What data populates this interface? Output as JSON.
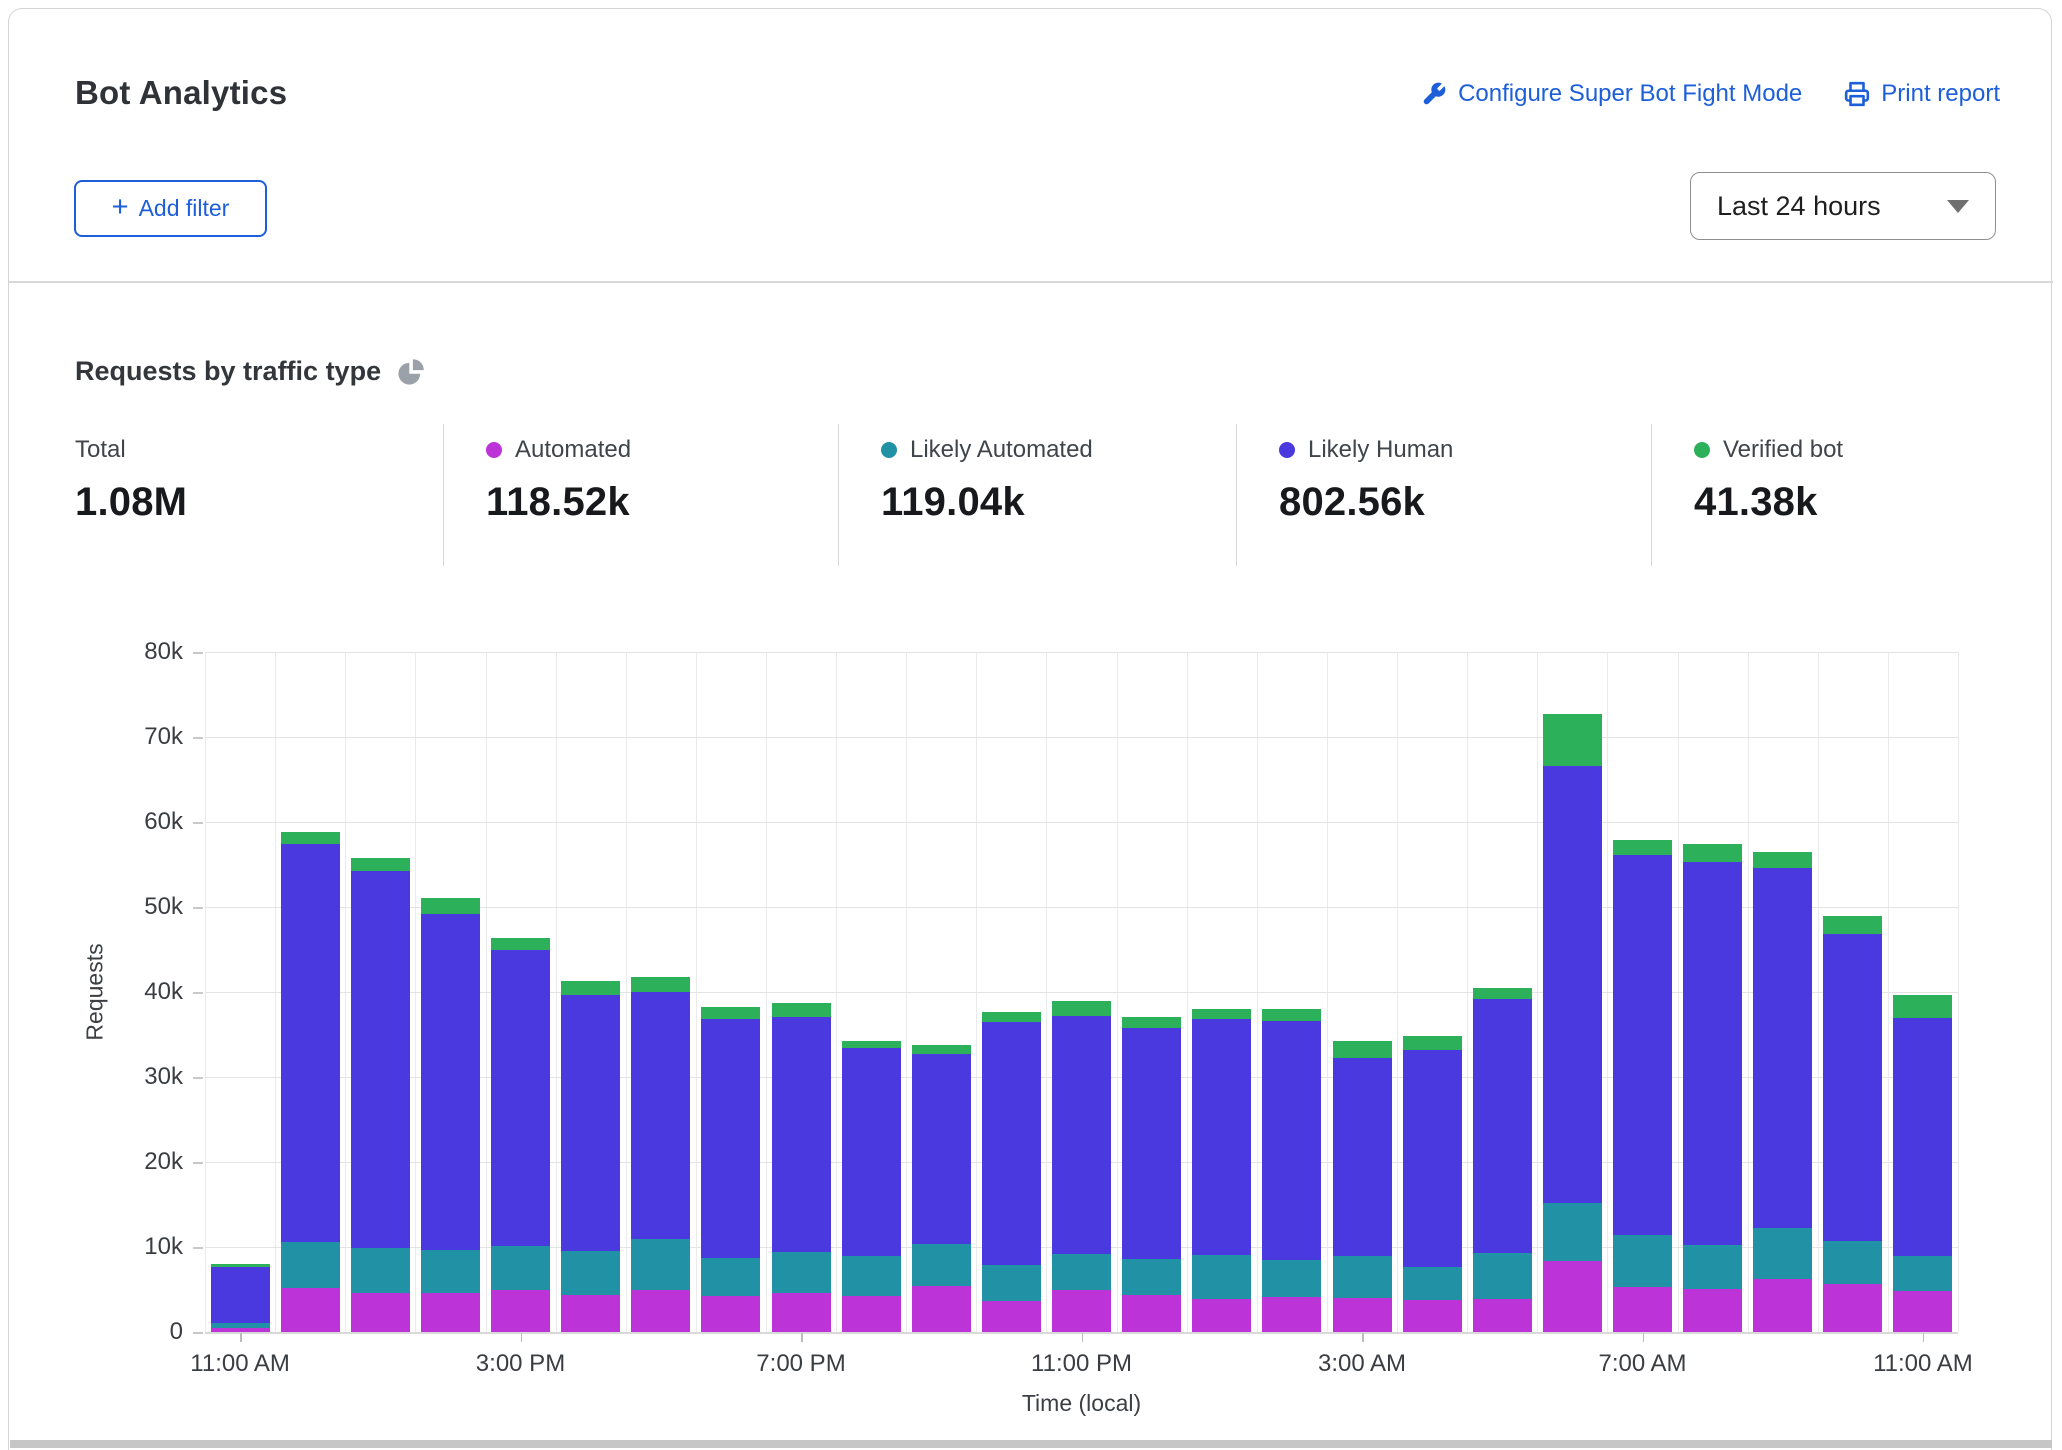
{
  "header": {
    "title": "Bot Analytics",
    "configure_link": "Configure Super Bot Fight Mode",
    "print_link": "Print report",
    "add_filter_label": "Add filter",
    "time_range_value": "Last 24 hours"
  },
  "section": {
    "heading": "Requests by traffic type"
  },
  "stats": [
    {
      "label": "Total",
      "value": "1.08M",
      "color": null
    },
    {
      "label": "Automated",
      "value": "118.52k",
      "color": "#bc34d8"
    },
    {
      "label": "Likely Automated",
      "value": "119.04k",
      "color": "#2191a5"
    },
    {
      "label": "Likely Human",
      "value": "802.56k",
      "color": "#4939de"
    },
    {
      "label": "Verified bot",
      "value": "41.38k",
      "color": "#2cb05a"
    }
  ],
  "chart_data": {
    "type": "bar",
    "stacked": true,
    "title": "Requests by traffic type",
    "xlabel": "Time (local)",
    "ylabel": "Requests",
    "ylim": [
      0,
      80000
    ],
    "ytick_step": 10000,
    "ytick_labels": [
      "0",
      "10k",
      "20k",
      "30k",
      "40k",
      "50k",
      "60k",
      "70k",
      "80k"
    ],
    "grid": true,
    "legend_position": "top-stats-row",
    "x": [
      "11:00 AM",
      "12:00 PM",
      "1:00 PM",
      "2:00 PM",
      "3:00 PM",
      "4:00 PM",
      "5:00 PM",
      "6:00 PM",
      "7:00 PM",
      "8:00 PM",
      "9:00 PM",
      "10:00 PM",
      "11:00 PM",
      "12:00 AM",
      "1:00 AM",
      "2:00 AM",
      "3:00 AM",
      "4:00 AM",
      "5:00 AM",
      "6:00 AM",
      "7:00 AM",
      "8:00 AM",
      "9:00 AM",
      "10:00 AM",
      "11:00 AM"
    ],
    "xtick_labels": [
      "11:00 AM",
      "3:00 PM",
      "7:00 PM",
      "11:00 PM",
      "3:00 AM",
      "7:00 AM",
      "11:00 AM"
    ],
    "xtick_positions": [
      0,
      4,
      8,
      12,
      16,
      20,
      24
    ],
    "series": [
      {
        "name": "Automated",
        "color": "#bc34d8",
        "values": [
          500,
          5200,
          4600,
          4600,
          5000,
          4400,
          4900,
          4300,
          4600,
          4300,
          5400,
          3600,
          4900,
          4300,
          3900,
          4100,
          4000,
          3800,
          3900,
          8300,
          5300,
          5100,
          6200,
          5600,
          4800
        ]
      },
      {
        "name": "Likely Automated",
        "color": "#2191a5",
        "values": [
          600,
          5400,
          5300,
          5000,
          5100,
          5200,
          6100,
          4400,
          4800,
          4700,
          5000,
          4300,
          4300,
          4300,
          5200,
          4400,
          5000,
          3900,
          5400,
          6900,
          6100,
          5100,
          6000,
          5100,
          4100
        ]
      },
      {
        "name": "Likely Human",
        "color": "#4939de",
        "values": [
          6600,
          46800,
          44300,
          39600,
          34800,
          30000,
          29000,
          28100,
          27700,
          24400,
          22300,
          28600,
          28000,
          27200,
          27700,
          28100,
          23200,
          25500,
          29900,
          51400,
          44700,
          45100,
          42400,
          36100,
          28000
        ]
      },
      {
        "name": "Verified bot",
        "color": "#2cb05a",
        "values": [
          300,
          1400,
          1600,
          1900,
          1500,
          1700,
          1800,
          1500,
          1600,
          900,
          1100,
          1200,
          1700,
          1300,
          1200,
          1400,
          2000,
          1600,
          1300,
          6100,
          1800,
          2100,
          1900,
          2200,
          2700
        ]
      }
    ]
  }
}
